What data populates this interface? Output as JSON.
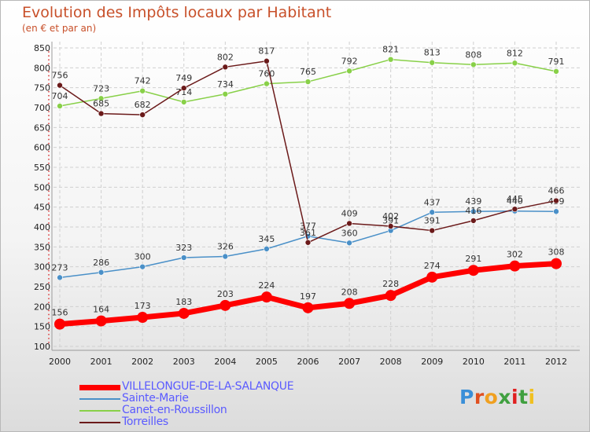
{
  "chart_data": {
    "type": "line",
    "title": "Evolution des Impôts locaux par Habitant",
    "subtitle": "(en € et par an)",
    "categories": [
      "2000",
      "2001",
      "2002",
      "2003",
      "2004",
      "2005",
      "2006",
      "2007",
      "2008",
      "2009",
      "2010",
      "2011",
      "2012"
    ],
    "y_ticks": [
      "100",
      "150",
      "200",
      "250",
      "300",
      "350",
      "400",
      "450",
      "500",
      "550",
      "600",
      "650",
      "700",
      "750",
      "800",
      "850"
    ],
    "ylim": [
      100,
      850
    ],
    "grid": true,
    "legend_position": "bottom-left",
    "series": [
      {
        "name": "Sainte-Marie",
        "color": "#4a90c8",
        "values": [
          273,
          286,
          300,
          323,
          326,
          345,
          377,
          360,
          391,
          437,
          439,
          440,
          439
        ]
      },
      {
        "name": "Canet-en-Roussillon",
        "color": "#88d048",
        "values": [
          704,
          723,
          742,
          714,
          734,
          760,
          765,
          792,
          821,
          813,
          808,
          812,
          791
        ]
      },
      {
        "name": "Torreilles",
        "color": "#6b1a1a",
        "values": [
          756,
          685,
          682,
          749,
          802,
          817,
          361,
          409,
          402,
          391,
          416,
          445,
          466
        ]
      },
      {
        "name": "VILLELONGUE-DE-LA-SALANQUE",
        "color": "#ff0000",
        "values": [
          156,
          164,
          173,
          183,
          203,
          224,
          197,
          208,
          228,
          274,
          291,
          302,
          308
        ]
      }
    ],
    "legend_order": [
      "VILLELONGUE-DE-LA-SALANQUE",
      "Sainte-Marie",
      "Canet-en-Roussillon",
      "Torreilles"
    ]
  },
  "brand": {
    "letters": [
      "P",
      "r",
      "o",
      "x",
      "i",
      "t",
      "i"
    ],
    "colors": [
      "#3a8fd8",
      "#e05020",
      "#f0a020",
      "#40a040",
      "#e02020",
      "#40a040",
      "#f0c020"
    ]
  }
}
